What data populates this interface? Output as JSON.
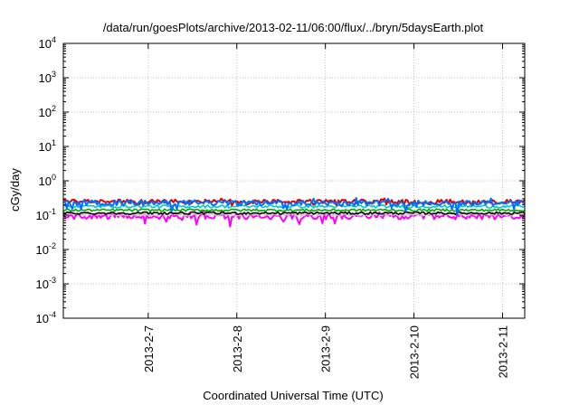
{
  "chart_data": {
    "type": "line",
    "title": "/data/run/goesPlots/archive/2013-02-11/06:00/flux/../bryn/5daysEarth.plot",
    "xlabel": "Coordinated Universal Time (UTC)",
    "ylabel": "cGy/day",
    "yscale": "log",
    "ylim": [
      0.0001,
      10000
    ],
    "y_ticks": [
      {
        "value": 0.0001,
        "base": "10",
        "exp": "-4"
      },
      {
        "value": 0.001,
        "base": "10",
        "exp": "-3"
      },
      {
        "value": 0.01,
        "base": "10",
        "exp": "-2"
      },
      {
        "value": 0.1,
        "base": "10",
        "exp": "-1"
      },
      {
        "value": 1,
        "base": "10",
        "exp": "0"
      },
      {
        "value": 10,
        "base": "10",
        "exp": "1"
      },
      {
        "value": 100,
        "base": "10",
        "exp": "2"
      },
      {
        "value": 1000,
        "base": "10",
        "exp": "3"
      },
      {
        "value": 10000,
        "base": "10",
        "exp": "4"
      }
    ],
    "xlim": [
      "2013-02-06T01:00",
      "2013-02-11T06:00"
    ],
    "x_ticks": [
      {
        "value": "2013-02-07T00:00",
        "label": "2013-2-7"
      },
      {
        "value": "2013-02-08T00:00",
        "label": "2013-2-8"
      },
      {
        "value": "2013-02-09T00:00",
        "label": "2013-2-9"
      },
      {
        "value": "2013-02-10T00:00",
        "label": "2013-2-10"
      },
      {
        "value": "2013-02-11T00:00",
        "label": "2013-2-11"
      }
    ],
    "grid": true,
    "legend": "none",
    "series": [
      {
        "color": "#ff00ff",
        "level": 0.092,
        "noise": 0.18,
        "dips": 0.35
      },
      {
        "color": "#d0c0c0",
        "level": 0.105,
        "noise": 0.1,
        "dips": 0.0
      },
      {
        "color": "#000000",
        "level": 0.115,
        "noise": 0.08,
        "dips": 0.0
      },
      {
        "color": "#00aa00",
        "level": 0.14,
        "noise": 0.08,
        "dips": 0.0
      },
      {
        "color": "#00c8c8",
        "level": 0.18,
        "noise": 0.1,
        "dips": 0.0
      },
      {
        "color": "#dd0000",
        "level": 0.25,
        "noise": 0.14,
        "dips": 0.15
      },
      {
        "color": "#0070ff",
        "level": 0.23,
        "noise": 0.18,
        "dips": 0.35
      }
    ]
  }
}
